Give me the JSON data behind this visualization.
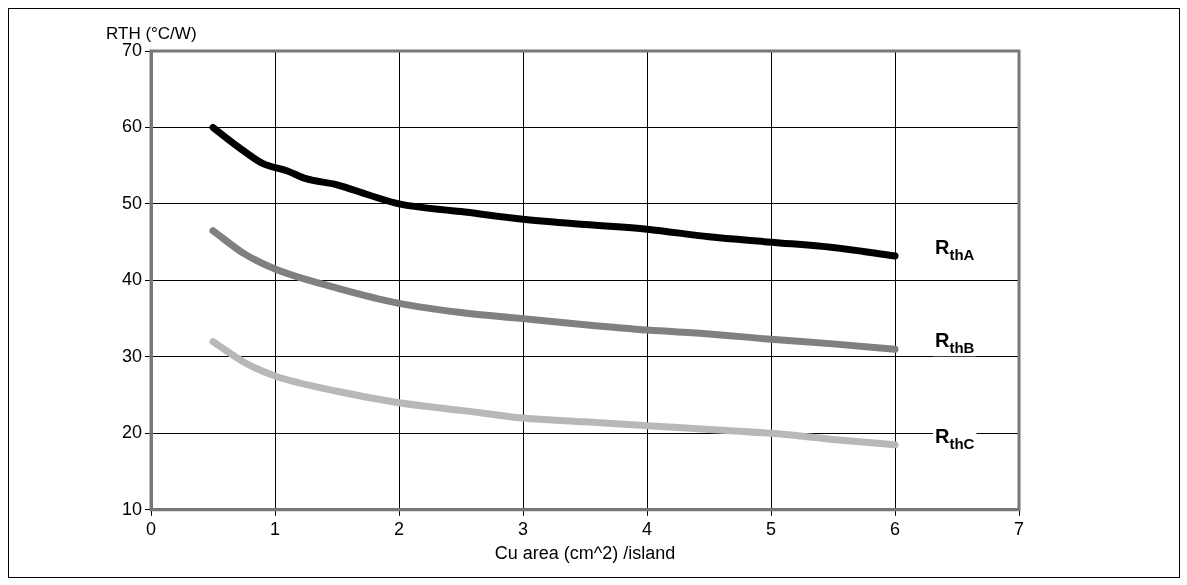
{
  "chart_data": {
    "type": "line",
    "ylabel": "RTH (°C/W)",
    "xlabel": "Cu area (cm^2) /island",
    "xlim": [
      0,
      7
    ],
    "xticks": [
      0,
      1,
      2,
      3,
      4,
      5,
      6,
      7
    ],
    "ylim": [
      10,
      70
    ],
    "yticks": [
      10,
      20,
      30,
      40,
      50,
      60,
      70
    ],
    "grid": true,
    "legend": false,
    "marker": "none",
    "line_style": "solid",
    "series": [
      {
        "name": "R$_{thA}$",
        "color": "#000000",
        "x": [
          0.5,
          0.7,
          0.9,
          1.1,
          1.25,
          1.5,
          1.75,
          2,
          2.5,
          3,
          3.5,
          4,
          4.5,
          5,
          5.5,
          6
        ],
        "values": [
          60,
          57.5,
          55.3,
          54.3,
          53.3,
          52.5,
          51.2,
          50,
          49,
          48,
          47.3,
          46.7,
          45.7,
          45,
          44.3,
          43.2
        ]
      },
      {
        "name": "R$_{thB}$",
        "color": "#808080",
        "x": [
          0.5,
          0.75,
          1,
          1.5,
          2,
          2.5,
          3,
          3.5,
          4,
          4.5,
          5,
          5.5,
          6
        ],
        "values": [
          46.5,
          43.5,
          41.5,
          39,
          37,
          35.8,
          35,
          34.2,
          33.5,
          33,
          32.3,
          31.7,
          31
        ]
      },
      {
        "name": "R$_{thC}$",
        "color": "#b8b8b8",
        "x": [
          0.5,
          0.75,
          1,
          1.5,
          2,
          2.5,
          3,
          3.5,
          4,
          4.5,
          5,
          5.5,
          6
        ],
        "values": [
          32,
          29.3,
          27.5,
          25.5,
          24,
          23,
          22,
          21.5,
          21,
          20.5,
          20,
          19.2,
          18.5
        ]
      }
    ]
  }
}
